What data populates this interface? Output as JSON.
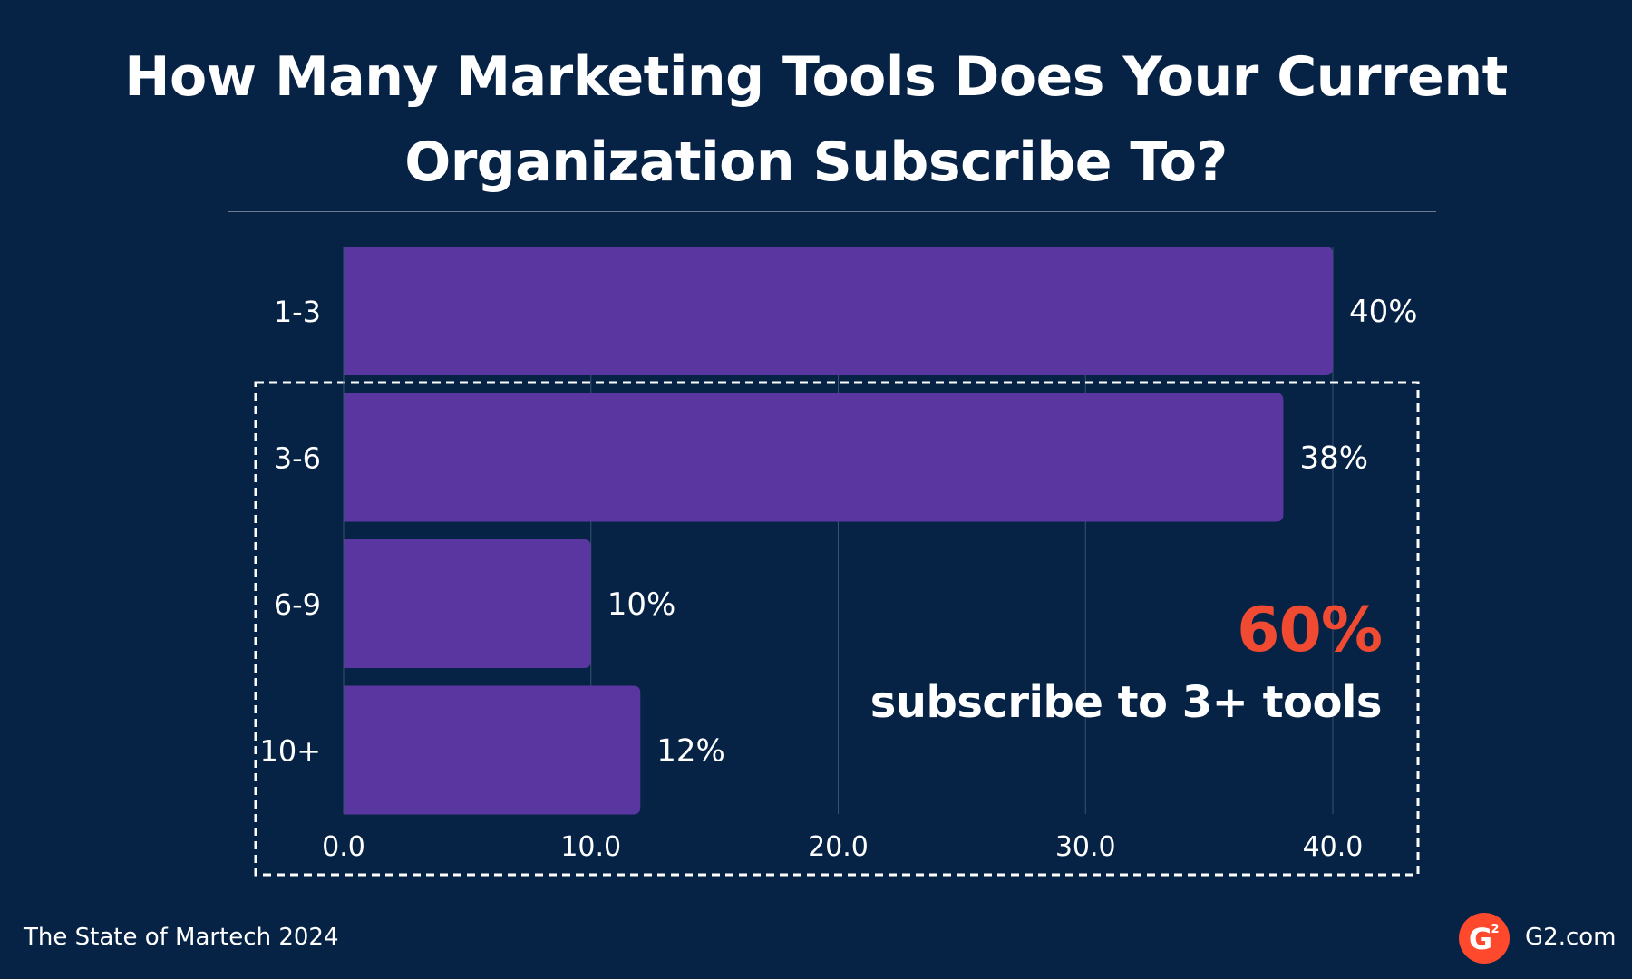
{
  "title_line1": "How Many Marketing Tools Does Your Current",
  "title_line2": "Organization Subscribe To?",
  "chart_data": {
    "type": "bar",
    "orientation": "horizontal",
    "categories": [
      "1-3",
      "3-6",
      "6-9",
      "10+"
    ],
    "values": [
      40,
      38,
      10,
      12
    ],
    "value_labels": [
      "40%",
      "38%",
      "10%",
      "12%"
    ],
    "x_ticks": [
      "0.0",
      "10.0",
      "20.0",
      "30.0",
      "40.0"
    ],
    "xlim": [
      0,
      40
    ],
    "grid": true,
    "bar_color": "#5a37a0"
  },
  "callout": {
    "value": "60%",
    "text": "subscribe to 3+ tools",
    "color": "#f04a32"
  },
  "footer": {
    "source": "The State of Martech 2024",
    "brand": "G2.com",
    "logo_text": "G",
    "logo_superscript": "2",
    "logo_color": "#ff492c"
  },
  "colors": {
    "background": "#062345",
    "text": "#ffffff",
    "grid": "#3a5170"
  }
}
